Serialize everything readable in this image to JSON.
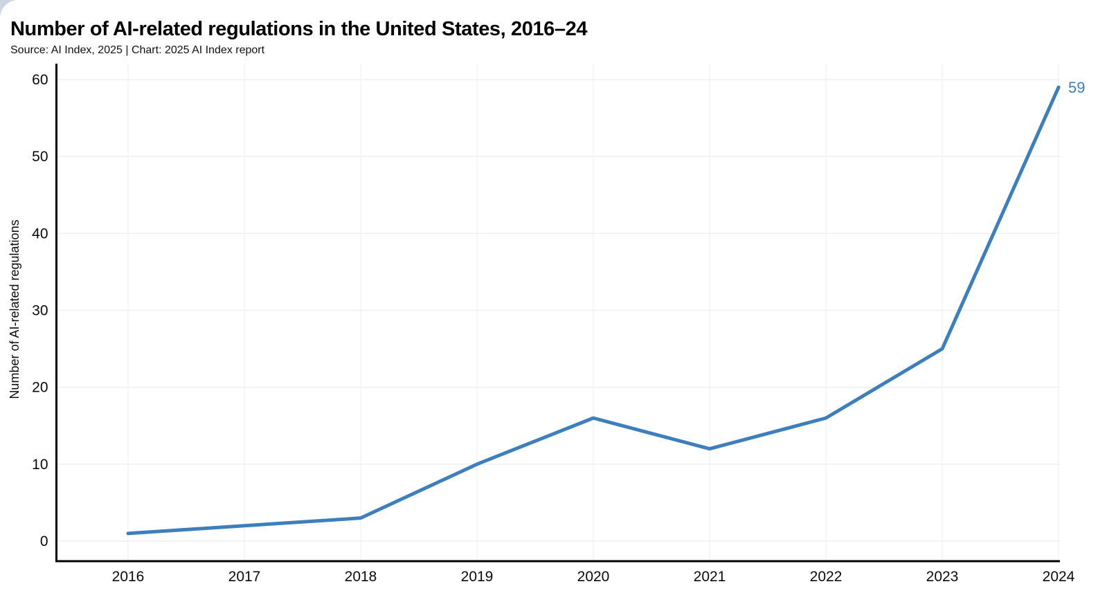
{
  "header": {
    "title": "Number of AI-related regulations in the United States, 2016–24",
    "subtitle": "Source: AI Index, 2025 | Chart: 2025 AI Index report"
  },
  "chart_data": {
    "type": "line",
    "title": "Number of AI-related regulations in the United States, 2016–24",
    "categories": [
      "2016",
      "2017",
      "2018",
      "2019",
      "2020",
      "2021",
      "2022",
      "2023",
      "2024"
    ],
    "values": [
      1,
      2,
      3,
      10,
      16,
      12,
      16,
      25,
      59
    ],
    "xlabel": "",
    "ylabel": "Number of AI-related regulations",
    "ylim": [
      0,
      60
    ],
    "yticks": [
      0,
      10,
      20,
      30,
      40,
      50,
      60
    ],
    "grid": true,
    "legend": "none",
    "end_label": "59",
    "colors": {
      "line": "#3d7ebd",
      "end_label": "#3d7ebd",
      "axis": "#000000",
      "tick_text": "#0a0a0a",
      "grid_horizontal": "#efefef",
      "grid_vertical": "#f4f4f6",
      "corner": "#ccd6e3"
    }
  }
}
